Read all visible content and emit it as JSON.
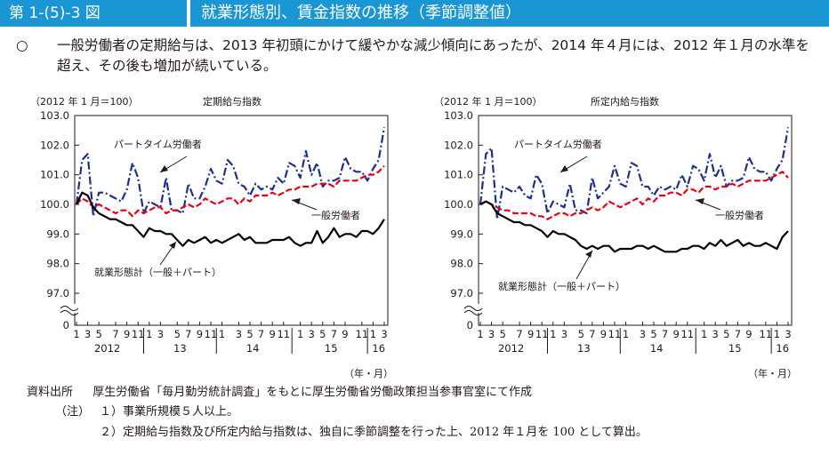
{
  "header": {
    "figure_number": "第 1-(5)-3 図",
    "title": "就業形態別、賃金指数の推移（季節調整値）"
  },
  "summary": {
    "mark": "○",
    "text": "一般労働者の定期給与は、2013 年初頭にかけて緩やかな減少傾向にあったが、2014 年４月には、2012 年１月の水準を超え、その後も増加が続いている。"
  },
  "chart_data": [
    {
      "type": "line",
      "title": "定期給与指数",
      "base_label": "（2012 年 1 月＝100）",
      "unit_label": "（年・月）",
      "ylim": [
        0,
        103.0
      ],
      "y_ticks": [
        "103.0",
        "102.0",
        "101.0",
        "100.0",
        "99.0",
        "98.0",
        "97.0",
        "0"
      ],
      "x_month_ticks": [
        "1",
        "3",
        "5",
        "7",
        "9",
        "11",
        "1",
        "3",
        "5",
        "7",
        "9",
        "11",
        "1",
        "3",
        "5",
        "7",
        "9",
        "11",
        "1",
        "3",
        "5",
        "7",
        "9",
        "11",
        "1",
        "3"
      ],
      "x_year_labels": [
        "2012",
        "13",
        "14",
        "15",
        "16"
      ],
      "series": [
        {
          "name": "パートタイム労働者",
          "color": "#1c2f8c",
          "style": "dashdot",
          "values": [
            100.0,
            101.5,
            101.7,
            99.6,
            100.4,
            100.4,
            100.3,
            100.2,
            100.1,
            100.5,
            101.4,
            100.9,
            99.7,
            100.1,
            100.0,
            99.9,
            100.9,
            99.8,
            99.8,
            99.7,
            100.7,
            100.2,
            100.2,
            100.6,
            101.2,
            100.8,
            100.7,
            101.5,
            101.3,
            100.7,
            100.6,
            100.3,
            100.7,
            100.5,
            100.6,
            100.5,
            100.9,
            100.7,
            101.4,
            101.3,
            100.9,
            101.8,
            101.0,
            101.4,
            100.6,
            100.8,
            100.8,
            100.9,
            101.6,
            101.2,
            101.1,
            101.1,
            100.8,
            101.2,
            101.5,
            102.6
          ]
        },
        {
          "name": "一般労働者",
          "color": "#e60012",
          "style": "dash",
          "values": [
            100.0,
            100.2,
            100.1,
            99.9,
            100.0,
            99.9,
            99.8,
            99.7,
            99.8,
            99.8,
            99.6,
            99.8,
            99.7,
            99.8,
            99.9,
            99.9,
            99.7,
            99.8,
            99.8,
            99.9,
            100.0,
            99.9,
            100.0,
            100.2,
            100.1,
            100.0,
            100.1,
            100.2,
            100.2,
            100.0,
            100.2,
            100.1,
            100.3,
            100.3,
            100.3,
            100.4,
            100.3,
            100.4,
            100.5,
            100.5,
            100.6,
            100.6,
            100.6,
            100.7,
            100.7,
            100.7,
            100.6,
            100.8,
            100.8,
            100.8,
            100.8,
            100.9,
            101.0,
            101.0,
            101.1,
            101.3
          ]
        },
        {
          "name": "就業形態計（一般＋パート）",
          "color": "#000000",
          "style": "solid",
          "values": [
            100.0,
            100.4,
            100.3,
            99.9,
            99.7,
            99.6,
            99.5,
            99.5,
            99.4,
            99.3,
            99.3,
            99.1,
            98.9,
            99.2,
            99.1,
            99.1,
            99.0,
            99.0,
            98.8,
            98.6,
            98.8,
            98.7,
            98.8,
            98.9,
            98.7,
            98.8,
            98.7,
            98.8,
            98.9,
            99.0,
            98.8,
            98.9,
            98.7,
            98.7,
            98.7,
            98.8,
            98.8,
            98.8,
            98.9,
            98.7,
            98.6,
            98.7,
            98.7,
            99.1,
            98.7,
            98.9,
            99.2,
            98.9,
            99.0,
            99.0,
            98.9,
            99.1,
            99.1,
            99.0,
            99.2,
            99.5
          ]
        }
      ],
      "annotations": [
        "パートタイム労働者",
        "一般労働者",
        "就業形態計（一般＋パート）"
      ]
    },
    {
      "type": "line",
      "title": "所定内給与指数",
      "base_label": "（2012 年 1 月＝100）",
      "unit_label": "（年・月）",
      "ylim": [
        0,
        103.0
      ],
      "y_ticks": [
        "103.0",
        "102.0",
        "101.0",
        "100.0",
        "99.0",
        "98.0",
        "97.0",
        "0"
      ],
      "x_month_ticks": [
        "1",
        "3",
        "5",
        "7",
        "9",
        "11",
        "1",
        "3",
        "5",
        "7",
        "9",
        "11",
        "1",
        "3",
        "5",
        "7",
        "9",
        "11",
        "1",
        "3",
        "5",
        "7",
        "9",
        "11",
        "1",
        "3"
      ],
      "x_year_labels": [
        "2012",
        "13",
        "14",
        "15",
        "16"
      ],
      "series": [
        {
          "name": "パートタイム労働者",
          "color": "#1c2f8c",
          "style": "dashdot",
          "values": [
            100.0,
            101.7,
            101.9,
            99.5,
            100.6,
            100.5,
            100.4,
            100.6,
            100.3,
            100.2,
            101.0,
            100.7,
            99.7,
            100.1,
            100.0,
            99.9,
            100.7,
            99.8,
            99.8,
            99.7,
            100.9,
            100.2,
            100.4,
            100.6,
            101.3,
            100.7,
            100.6,
            101.4,
            101.3,
            100.6,
            100.6,
            100.3,
            100.6,
            100.5,
            100.6,
            100.5,
            101.0,
            100.6,
            101.3,
            101.2,
            100.8,
            101.7,
            100.9,
            101.3,
            100.6,
            100.8,
            100.8,
            100.9,
            101.6,
            101.2,
            101.1,
            101.1,
            100.8,
            101.2,
            101.5,
            102.6
          ]
        },
        {
          "name": "一般労働者",
          "color": "#e60012",
          "style": "dash",
          "values": [
            100.0,
            100.1,
            100.0,
            99.9,
            99.8,
            99.8,
            99.7,
            99.7,
            99.7,
            99.7,
            99.6,
            99.6,
            99.5,
            99.6,
            99.7,
            99.7,
            99.6,
            99.7,
            99.7,
            99.8,
            99.9,
            99.8,
            99.9,
            100.1,
            100.0,
            99.9,
            100.0,
            100.1,
            100.2,
            100.0,
            100.2,
            100.1,
            100.3,
            100.3,
            100.4,
            100.4,
            100.3,
            100.5,
            100.5,
            100.4,
            100.6,
            100.6,
            100.5,
            100.6,
            100.6,
            100.7,
            100.6,
            100.7,
            100.8,
            100.8,
            100.8,
            100.8,
            100.9,
            101.0,
            101.1,
            100.9
          ]
        },
        {
          "name": "就業形態計（一般＋パート）",
          "color": "#000000",
          "style": "solid",
          "values": [
            100.0,
            100.1,
            100.0,
            99.7,
            99.6,
            99.5,
            99.4,
            99.4,
            99.3,
            99.3,
            99.2,
            99.1,
            98.9,
            99.1,
            99.0,
            99.0,
            98.9,
            98.8,
            98.6,
            98.5,
            98.6,
            98.5,
            98.6,
            98.6,
            98.4,
            98.5,
            98.5,
            98.5,
            98.6,
            98.6,
            98.5,
            98.6,
            98.5,
            98.4,
            98.4,
            98.4,
            98.5,
            98.5,
            98.6,
            98.6,
            98.5,
            98.7,
            98.6,
            98.8,
            98.6,
            98.7,
            98.8,
            98.6,
            98.7,
            98.6,
            98.6,
            98.7,
            98.6,
            98.5,
            98.9,
            99.1
          ]
        }
      ],
      "annotations": [
        "パートタイム労働者",
        "一般労働者",
        "就業形態計（一般＋パート）"
      ]
    }
  ],
  "footer": {
    "source_label": "資料出所",
    "source_text": "厚生労働省「毎月勤労統計調査」をもとに厚生労働省労働政策担当参事官室にて作成",
    "note_label": "（注）",
    "note1": "１）事業所規模５人以上。",
    "note2": "２）定期給与指数及び所定内給与指数は、独自に季節調整を行った上、2012 年１月を 100 として算出。"
  }
}
